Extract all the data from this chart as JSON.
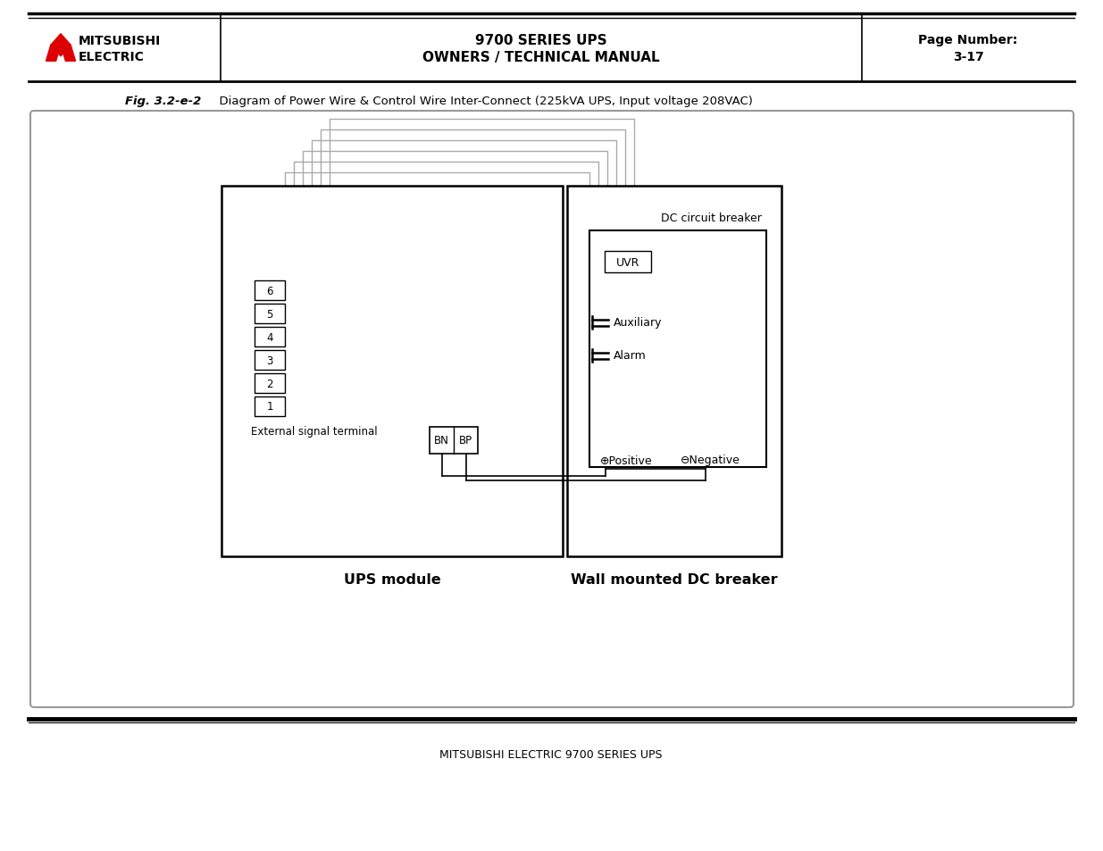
{
  "title_center_line1": "9700 SERIES UPS",
  "title_center_line2": "OWNERS / TECHNICAL MANUAL",
  "title_left_line1": "MITSUBISHI",
  "title_left_line2": "ELECTRIC",
  "title_right_line1": "Page Number:",
  "title_right_line2": "3-17",
  "fig_caption_bold": "Fig. 3.2-e-2",
  "fig_caption_rest": "  Diagram of Power Wire & Control Wire Inter-Connect (225kVA UPS, Input voltage 208VAC)",
  "footer_text": "MITSUBISHI ELECTRIC 9700 SERIES UPS",
  "terminal_labels": [
    "6",
    "5",
    "4",
    "3",
    "2",
    "1"
  ],
  "terminal_label": "External signal terminal",
  "dc_breaker_label": "DC circuit breaker",
  "uvr_label": "UVR",
  "auxiliary_label": "Auxiliary",
  "alarm_label": "Alarm",
  "positive_label": "⊕Positive",
  "negative_label": "⊖Negative",
  "ups_module_label": "UPS module",
  "dc_breaker_box_label": "Wall mounted DC breaker",
  "bg_color": "#ffffff",
  "wire_color": "#aaaaaa",
  "logo_color": "#dd0000"
}
